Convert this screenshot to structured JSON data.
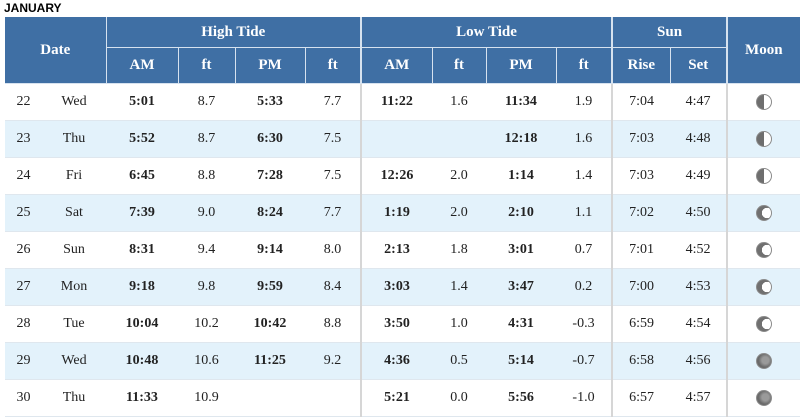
{
  "month": "JANUARY",
  "headers": {
    "date": "Date",
    "high_tide": "High Tide",
    "low_tide": "Low Tide",
    "sun": "Sun",
    "moon": "Moon",
    "am": "AM",
    "ft": "ft",
    "pm": "PM",
    "rise": "Rise",
    "set": "Set"
  },
  "rows": [
    {
      "day": "22",
      "dow": "Wed",
      "high_am": "5:01",
      "high_am_ft": "8.7",
      "high_pm": "5:33",
      "high_pm_ft": "7.7",
      "low_am": "11:22",
      "low_am_ft": "1.6",
      "low_pm": "11:34",
      "low_pm_ft": "1.9",
      "sunrise": "7:04",
      "sunset": "4:47",
      "moon": "first-quarter-moon-icon"
    },
    {
      "day": "23",
      "dow": "Thu",
      "high_am": "5:52",
      "high_am_ft": "8.7",
      "high_pm": "6:30",
      "high_pm_ft": "7.5",
      "low_am": "",
      "low_am_ft": "",
      "low_pm": "12:18",
      "low_pm_ft": "1.6",
      "sunrise": "7:03",
      "sunset": "4:48",
      "moon": "first-quarter-moon-icon"
    },
    {
      "day": "24",
      "dow": "Fri",
      "high_am": "6:45",
      "high_am_ft": "8.8",
      "high_pm": "7:28",
      "high_pm_ft": "7.5",
      "low_am": "12:26",
      "low_am_ft": "2.0",
      "low_pm": "1:14",
      "low_pm_ft": "1.4",
      "sunrise": "7:03",
      "sunset": "4:49",
      "moon": "first-quarter-moon-icon"
    },
    {
      "day": "25",
      "dow": "Sat",
      "high_am": "7:39",
      "high_am_ft": "9.0",
      "high_pm": "8:24",
      "high_pm_ft": "7.7",
      "low_am": "1:19",
      "low_am_ft": "2.0",
      "low_pm": "2:10",
      "low_pm_ft": "1.1",
      "sunrise": "7:02",
      "sunset": "4:50",
      "moon": "waxing-gibbous-moon-icon"
    },
    {
      "day": "26",
      "dow": "Sun",
      "high_am": "8:31",
      "high_am_ft": "9.4",
      "high_pm": "9:14",
      "high_pm_ft": "8.0",
      "low_am": "2:13",
      "low_am_ft": "1.8",
      "low_pm": "3:01",
      "low_pm_ft": "0.7",
      "sunrise": "7:01",
      "sunset": "4:52",
      "moon": "waxing-gibbous-moon-icon"
    },
    {
      "day": "27",
      "dow": "Mon",
      "high_am": "9:18",
      "high_am_ft": "9.8",
      "high_pm": "9:59",
      "high_pm_ft": "8.4",
      "low_am": "3:03",
      "low_am_ft": "1.4",
      "low_pm": "3:47",
      "low_pm_ft": "0.2",
      "sunrise": "7:00",
      "sunset": "4:53",
      "moon": "waxing-gibbous-moon-icon"
    },
    {
      "day": "28",
      "dow": "Tue",
      "high_am": "10:04",
      "high_am_ft": "10.2",
      "high_pm": "10:42",
      "high_pm_ft": "8.8",
      "low_am": "3:50",
      "low_am_ft": "1.0",
      "low_pm": "4:31",
      "low_pm_ft": "-0.3",
      "sunrise": "6:59",
      "sunset": "4:54",
      "moon": "waxing-gibbous-moon-icon"
    },
    {
      "day": "29",
      "dow": "Wed",
      "high_am": "10:48",
      "high_am_ft": "10.6",
      "high_pm": "11:25",
      "high_pm_ft": "9.2",
      "low_am": "4:36",
      "low_am_ft": "0.5",
      "low_pm": "5:14",
      "low_pm_ft": "-0.7",
      "sunrise": "6:58",
      "sunset": "4:56",
      "moon": "full-moon-icon"
    },
    {
      "day": "30",
      "dow": "Thu",
      "high_am": "11:33",
      "high_am_ft": "10.9",
      "high_pm": "",
      "high_pm_ft": "",
      "low_am": "5:21",
      "low_am_ft": "0.0",
      "low_pm": "5:56",
      "low_pm_ft": "-1.0",
      "sunrise": "6:57",
      "sunset": "4:57",
      "moon": "full-moon-icon"
    }
  ]
}
